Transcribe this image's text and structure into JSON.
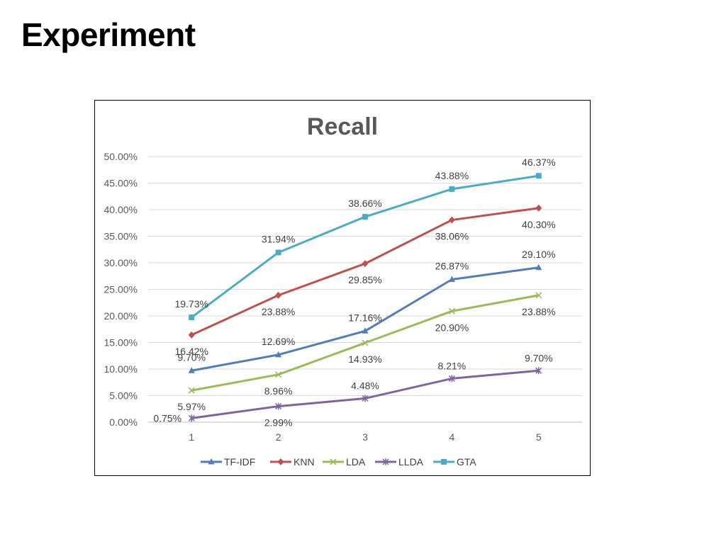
{
  "slide": {
    "title": "Experiment"
  },
  "chart_data": {
    "type": "line",
    "title": "Recall",
    "xlabel": "",
    "ylabel": "",
    "categories": [
      "1",
      "2",
      "3",
      "4",
      "5"
    ],
    "ylim": [
      0,
      50
    ],
    "yticks": [
      "0.00%",
      "5.00%",
      "10.00%",
      "15.00%",
      "20.00%",
      "25.00%",
      "30.00%",
      "35.00%",
      "40.00%",
      "45.00%",
      "50.00%"
    ],
    "grid": true,
    "legend": "bottom",
    "series": [
      {
        "name": "TF-IDF",
        "color": "#4F7EBB",
        "marker": "triangle",
        "values": [
          9.7,
          12.69,
          17.16,
          26.87,
          29.1
        ],
        "labels": [
          "9.70%",
          "12.69%",
          "17.16%",
          "26.87%",
          "29.10%"
        ]
      },
      {
        "name": "KNN",
        "color": "#C0504D",
        "marker": "diamond",
        "values": [
          16.42,
          23.88,
          29.85,
          38.06,
          40.3
        ],
        "labels": [
          "16.42%",
          "23.88%",
          "29.85%",
          "38.06%",
          "40.30%"
        ]
      },
      {
        "name": "LDA",
        "color": "#9BBB59",
        "marker": "x",
        "values": [
          5.97,
          8.96,
          14.93,
          20.9,
          23.88
        ],
        "labels": [
          "5.97%",
          "8.96%",
          "14.93%",
          "20.90%",
          "23.88%"
        ]
      },
      {
        "name": "LLDA",
        "color": "#8064A2",
        "marker": "star",
        "values": [
          0.75,
          2.99,
          4.48,
          8.21,
          9.7
        ],
        "labels": [
          "0.75%",
          "2.99%",
          "4.48%",
          "8.21%",
          "9.70%"
        ]
      },
      {
        "name": "GTA",
        "color": "#4BACC6",
        "marker": "square",
        "values": [
          19.73,
          31.94,
          38.66,
          43.88,
          46.37
        ],
        "labels": [
          "19.73%",
          "31.94%",
          "38.66%",
          "43.88%",
          "46.37%"
        ]
      }
    ]
  }
}
